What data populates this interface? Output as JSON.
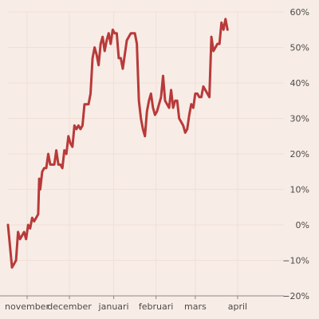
{
  "chart_data": {
    "type": "line",
    "title": "",
    "xlabel": "",
    "ylabel": "",
    "ylim": [
      -20,
      60
    ],
    "y_ticks": [
      -20,
      -10,
      0,
      10,
      20,
      30,
      40,
      50,
      60
    ],
    "y_tick_labels": [
      "−20%",
      "−10%",
      "0%",
      "10%",
      "20%",
      "30%",
      "40%",
      "50%",
      "60%"
    ],
    "x_ticks": [
      {
        "label": "november",
        "x": 9.5
      },
      {
        "label": "december",
        "x": 30.5
      },
      {
        "label": "januari",
        "x": 52.5
      },
      {
        "label": "februari",
        "x": 73.5
      },
      {
        "label": "mars",
        "x": 93
      },
      {
        "label": "april",
        "x": 114
      }
    ],
    "xlim": [
      0,
      137
    ],
    "grid": true,
    "line_color": "#b83a3a",
    "series": [
      {
        "values": [
          [
            0,
            0
          ],
          [
            1,
            -6
          ],
          [
            2,
            -12
          ],
          [
            3,
            -11
          ],
          [
            4,
            -10
          ],
          [
            5,
            -2
          ],
          [
            6,
            -4
          ],
          [
            7,
            -3
          ],
          [
            8,
            -2
          ],
          [
            9,
            -4
          ],
          [
            10,
            0
          ],
          [
            11,
            -1
          ],
          [
            12,
            2
          ],
          [
            13,
            1
          ],
          [
            14,
            2
          ],
          [
            15,
            3
          ],
          [
            15.5,
            13
          ],
          [
            16,
            10
          ],
          [
            17,
            15
          ],
          [
            18,
            16
          ],
          [
            19,
            16
          ],
          [
            20,
            20
          ],
          [
            21,
            17
          ],
          [
            22,
            17
          ],
          [
            23,
            17
          ],
          [
            24,
            21
          ],
          [
            25,
            17
          ],
          [
            26,
            17
          ],
          [
            27,
            16
          ],
          [
            28,
            21
          ],
          [
            29,
            20
          ],
          [
            30,
            25
          ],
          [
            31,
            23
          ],
          [
            32,
            22
          ],
          [
            33,
            28
          ],
          [
            34,
            27
          ],
          [
            35,
            28
          ],
          [
            36,
            27
          ],
          [
            37,
            28
          ],
          [
            38,
            34
          ],
          [
            39,
            34
          ],
          [
            40,
            34
          ],
          [
            41,
            37
          ],
          [
            42,
            47
          ],
          [
            43,
            50
          ],
          [
            44,
            48
          ],
          [
            45,
            45
          ],
          [
            46,
            51
          ],
          [
            47,
            53
          ],
          [
            48,
            49
          ],
          [
            49,
            52
          ],
          [
            50,
            54
          ],
          [
            51,
            51
          ],
          [
            52,
            55
          ],
          [
            53,
            54
          ],
          [
            54,
            54
          ],
          [
            55,
            47
          ],
          [
            56,
            47
          ],
          [
            57,
            44
          ],
          [
            58,
            48
          ],
          [
            59,
            52
          ],
          [
            60,
            53
          ],
          [
            61,
            54
          ],
          [
            62,
            54
          ],
          [
            63,
            54
          ],
          [
            64,
            51
          ],
          [
            65,
            35
          ],
          [
            66,
            30
          ],
          [
            67,
            27
          ],
          [
            68,
            25
          ],
          [
            69,
            32
          ],
          [
            70,
            35
          ],
          [
            71,
            37
          ],
          [
            72,
            33
          ],
          [
            73,
            31
          ],
          [
            74,
            32
          ],
          [
            75,
            34
          ],
          [
            76,
            36
          ],
          [
            77,
            42
          ],
          [
            78,
            35
          ],
          [
            79,
            34
          ],
          [
            80,
            33
          ],
          [
            81,
            38
          ],
          [
            82,
            33
          ],
          [
            83,
            35
          ],
          [
            84,
            35
          ],
          [
            85,
            30
          ],
          [
            86,
            29
          ],
          [
            87,
            28
          ],
          [
            88,
            26
          ],
          [
            89,
            27
          ],
          [
            90,
            31
          ],
          [
            91,
            34
          ],
          [
            92,
            33
          ],
          [
            93,
            37
          ],
          [
            94,
            37
          ],
          [
            95,
            36
          ],
          [
            96,
            36
          ],
          [
            97,
            39
          ],
          [
            98,
            38
          ],
          [
            99,
            37
          ],
          [
            100,
            36
          ],
          [
            101,
            53
          ],
          [
            102,
            49
          ],
          [
            103,
            50
          ],
          [
            104,
            51
          ],
          [
            105,
            51
          ],
          [
            106,
            57
          ],
          [
            107,
            55
          ],
          [
            108,
            58
          ],
          [
            109,
            55
          ]
        ]
      }
    ]
  }
}
